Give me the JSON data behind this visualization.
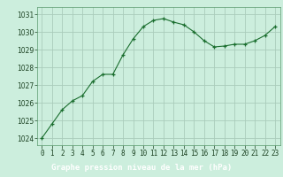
{
  "x": [
    0,
    1,
    2,
    3,
    4,
    5,
    6,
    7,
    8,
    9,
    10,
    11,
    12,
    13,
    14,
    15,
    16,
    17,
    18,
    19,
    20,
    21,
    22,
    23
  ],
  "y": [
    1024.0,
    1024.8,
    1025.6,
    1026.1,
    1026.4,
    1027.2,
    1027.6,
    1027.6,
    1028.7,
    1029.6,
    1030.3,
    1030.65,
    1030.75,
    1030.55,
    1030.4,
    1030.0,
    1029.5,
    1029.15,
    1029.2,
    1029.3,
    1029.3,
    1029.5,
    1029.8,
    1030.3
  ],
  "bg_color": "#cceedd",
  "grid_color": "#aaccbb",
  "line_color": "#1a6e2e",
  "marker_color": "#1a6e2e",
  "xlabel": "Graphe pression niveau de la mer (hPa)",
  "xlabel_bg": "#2d6e3e",
  "xlabel_fg": "#ffffff",
  "ylim": [
    1023.6,
    1031.4
  ],
  "yticks": [
    1024,
    1025,
    1026,
    1027,
    1028,
    1029,
    1030,
    1031
  ],
  "xlim": [
    -0.5,
    23.5
  ],
  "xticks": [
    0,
    1,
    2,
    3,
    4,
    5,
    6,
    7,
    8,
    9,
    10,
    11,
    12,
    13,
    14,
    15,
    16,
    17,
    18,
    19,
    20,
    21,
    22,
    23
  ],
  "tick_fontsize": 5.5,
  "xlabel_fontsize": 6.5
}
